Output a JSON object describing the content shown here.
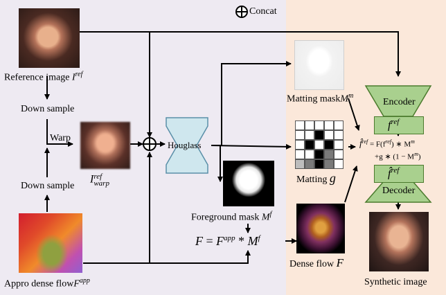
{
  "legend": {
    "concat": "Concat"
  },
  "inputs": {
    "reference_image": "Reference image ",
    "reference_image_sym": "I",
    "reference_image_sup": "ref",
    "down_sample_top": "Down sample",
    "down_sample_bottom": "Down sample",
    "warp": "Warp",
    "warp_sym": "I",
    "warp_sup": "ref",
    "warp_sub": "warp",
    "appro_flow": "Appro dense flow",
    "appro_flow_sym": "F",
    "appro_flow_sup": "app"
  },
  "network": {
    "hourglass": "Houglass",
    "foreground_mask": "Foreground mask ",
    "foreground_mask_sym": "M",
    "foreground_mask_sup": "f",
    "formula_F": "F",
    "formula_eq": "=",
    "formula_Fapp": "F",
    "formula_app_sup": "app",
    "formula_star": "*",
    "formula_M": "M",
    "formula_M_sup": "f",
    "matting_mask": "Matting mask",
    "matting_mask_sym": "M",
    "matting_mask_sup": "m",
    "matting": "Matting ",
    "matting_sym": "g",
    "dense_flow": "Dense flow ",
    "dense_flow_sym": "F"
  },
  "decoder_side": {
    "encoder": "Encoder",
    "f_ref": "f",
    "f_ref_sup": "ref",
    "equation_line1_lhs": "f̂",
    "equation_line1_sup": "ref",
    "equation_line1": " = F(f",
    "equation_line1_b": ") ∗ M",
    "equation_line2": "+g ∗ (1 − M",
    "equation_line2_end": ")",
    "fhat_ref": "f̂",
    "fhat_ref_sup": "ref",
    "decoder": "Decoder",
    "synthetic_image": "Synthetic image"
  },
  "matting_grid": [
    [
      0,
      0,
      0,
      0,
      0
    ],
    [
      0,
      0,
      1,
      0,
      0
    ],
    [
      0,
      1,
      0,
      1,
      0
    ],
    [
      0,
      0,
      1,
      2,
      0
    ],
    [
      3,
      2,
      1,
      2,
      0
    ]
  ]
}
